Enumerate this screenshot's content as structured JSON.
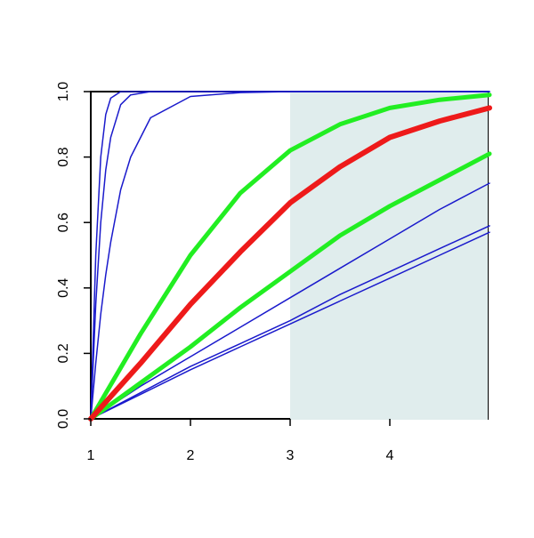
{
  "chart_data": {
    "type": "line",
    "xlim": [
      1,
      5
    ],
    "ylim": [
      0,
      1
    ],
    "xticks": [
      1,
      2,
      3,
      4
    ],
    "yticks": [
      {
        "value": 0,
        "label": "0.0"
      },
      0.2,
      0.4,
      0.6,
      0.8,
      {
        "value": 1,
        "label": "1.0"
      }
    ],
    "shade": {
      "from": 3,
      "color": "#e0eded"
    },
    "series": [
      {
        "color": "#1a1acc",
        "width": 1.5,
        "x": [
          1,
          1.05,
          1.1,
          1.15,
          1.2,
          1.3,
          1.4,
          1.6,
          2,
          3,
          5
        ],
        "values": [
          0,
          0.5,
          0.8,
          0.93,
          0.98,
          1,
          1,
          1,
          1,
          1,
          1
        ]
      },
      {
        "color": "#1a1acc",
        "width": 1.5,
        "x": [
          1,
          1.05,
          1.1,
          1.15,
          1.2,
          1.3,
          1.4,
          1.6,
          2,
          3,
          5
        ],
        "values": [
          0,
          0.35,
          0.6,
          0.76,
          0.86,
          0.96,
          0.99,
          1,
          1,
          1,
          1
        ]
      },
      {
        "color": "#1a1acc",
        "width": 1.5,
        "x": [
          1,
          1.05,
          1.1,
          1.15,
          1.2,
          1.3,
          1.4,
          1.6,
          2,
          2.5,
          3,
          5
        ],
        "values": [
          0,
          0.17,
          0.32,
          0.44,
          0.54,
          0.7,
          0.8,
          0.92,
          0.985,
          0.997,
          1,
          1
        ]
      },
      {
        "color": "#1a1acc",
        "width": 1.5,
        "x": [
          1,
          1.5,
          2,
          2.5,
          3,
          3.5,
          4,
          4.5,
          5
        ],
        "values": [
          0,
          0.1,
          0.19,
          0.28,
          0.37,
          0.46,
          0.55,
          0.64,
          0.72
        ]
      },
      {
        "color": "#1a1acc",
        "width": 1.5,
        "x": [
          1,
          1.5,
          2,
          2.5,
          3,
          3.5,
          4,
          4.5,
          5
        ],
        "values": [
          0,
          0.08,
          0.16,
          0.23,
          0.3,
          0.38,
          0.45,
          0.52,
          0.59
        ]
      },
      {
        "color": "#1a1acc",
        "width": 1.5,
        "x": [
          1,
          1.5,
          2,
          2.5,
          3,
          3.5,
          4,
          4.5,
          5
        ],
        "values": [
          0,
          0.075,
          0.15,
          0.22,
          0.29,
          0.36,
          0.43,
          0.5,
          0.57
        ]
      },
      {
        "color": "#22ee22",
        "width": 5,
        "x": [
          1,
          1.5,
          2,
          2.5,
          3,
          3.5,
          4,
          4.5,
          5
        ],
        "values": [
          0,
          0.11,
          0.22,
          0.34,
          0.45,
          0.56,
          0.65,
          0.73,
          0.81
        ]
      },
      {
        "color": "#22ee22",
        "width": 5,
        "x": [
          1,
          1.5,
          2,
          2.5,
          3,
          3.5,
          4,
          4.5,
          5
        ],
        "values": [
          0,
          0.26,
          0.5,
          0.69,
          0.82,
          0.9,
          0.95,
          0.975,
          0.99
        ]
      },
      {
        "color": "#ee1a1a",
        "width": 6,
        "x": [
          1,
          1.5,
          2,
          2.5,
          3,
          3.5,
          4,
          4.5,
          5
        ],
        "values": [
          0,
          0.17,
          0.35,
          0.51,
          0.66,
          0.77,
          0.86,
          0.91,
          0.95
        ]
      }
    ]
  }
}
